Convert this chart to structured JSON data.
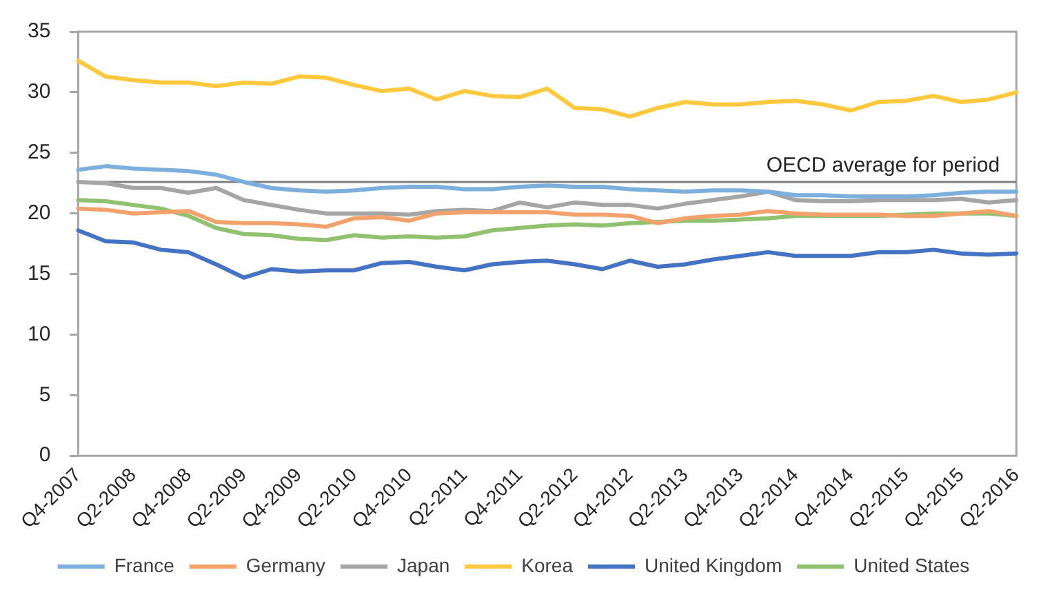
{
  "chart_data": {
    "type": "line",
    "categories": [
      "Q4-2007",
      null,
      "Q2-2008",
      null,
      "Q4-2008",
      null,
      "Q2-2009",
      null,
      "Q4-2009",
      null,
      "Q2-2010",
      null,
      "Q4-2010",
      null,
      "Q2-2011",
      null,
      "Q4-2011",
      null,
      "Q2-2012",
      null,
      "Q4-2012",
      null,
      "Q2-2013",
      null,
      "Q4-2013",
      null,
      "Q2-2014",
      null,
      "Q4-2014",
      null,
      "Q2-2015",
      null,
      "Q4-2015",
      null,
      "Q2-2016"
    ],
    "series": [
      {
        "name": "France",
        "color": "#7cafdd",
        "values": [
          23.6,
          23.9,
          23.7,
          23.6,
          23.5,
          23.2,
          22.6,
          22.1,
          21.9,
          21.8,
          21.9,
          22.1,
          22.2,
          22.2,
          22.0,
          22.0,
          22.2,
          22.3,
          22.2,
          22.2,
          22.0,
          21.9,
          21.8,
          21.9,
          21.9,
          21.8,
          21.5,
          21.5,
          21.4,
          21.4,
          21.4,
          21.5,
          21.7,
          21.8,
          21.8
        ]
      },
      {
        "name": "Germany",
        "color": "#f4a26b",
        "values": [
          20.4,
          20.3,
          20.0,
          20.1,
          20.2,
          19.3,
          19.2,
          19.2,
          19.1,
          18.9,
          19.6,
          19.7,
          19.4,
          20.0,
          20.1,
          20.1,
          20.1,
          20.1,
          19.9,
          19.9,
          19.8,
          19.2,
          19.6,
          19.8,
          19.9,
          20.2,
          20.0,
          19.9,
          19.9,
          19.9,
          19.8,
          19.8,
          20.0,
          20.2,
          19.8
        ]
      },
      {
        "name": "Japan",
        "color": "#a5a5a5",
        "values": [
          22.6,
          22.5,
          22.1,
          22.1,
          21.7,
          22.1,
          21.1,
          20.7,
          20.3,
          20.0,
          20.0,
          20.0,
          19.9,
          20.2,
          20.3,
          20.2,
          20.9,
          20.5,
          20.9,
          20.7,
          20.7,
          20.4,
          20.8,
          21.1,
          21.4,
          21.8,
          21.1,
          21.0,
          21.0,
          21.1,
          21.1,
          21.1,
          21.2,
          20.9,
          21.1
        ]
      },
      {
        "name": "Korea",
        "color": "#ffc83d",
        "values": [
          32.6,
          31.3,
          31.0,
          30.8,
          30.8,
          30.5,
          30.8,
          30.7,
          31.3,
          31.2,
          30.6,
          30.1,
          30.3,
          29.4,
          30.1,
          29.7,
          29.6,
          30.3,
          28.7,
          28.6,
          28.0,
          28.7,
          29.2,
          29.0,
          29.0,
          29.2,
          29.3,
          29.0,
          28.5,
          29.2,
          29.3,
          29.7,
          29.2,
          29.4,
          30.0
        ]
      },
      {
        "name": "United Kingdom",
        "color": "#4472c4",
        "values": [
          18.6,
          17.7,
          17.6,
          17.0,
          16.8,
          15.8,
          14.7,
          15.4,
          15.2,
          15.3,
          15.3,
          15.9,
          16.0,
          15.6,
          15.3,
          15.8,
          16.0,
          16.1,
          15.8,
          15.4,
          16.1,
          15.6,
          15.8,
          16.2,
          16.5,
          16.8,
          16.5,
          16.5,
          16.5,
          16.8,
          16.8,
          17.0,
          16.7,
          16.6,
          16.7
        ]
      },
      {
        "name": "United States",
        "color": "#8fc16e",
        "values": [
          21.1,
          21.0,
          20.7,
          20.4,
          19.8,
          18.8,
          18.3,
          18.2,
          17.9,
          17.8,
          18.2,
          18.0,
          18.1,
          18.0,
          18.1,
          18.6,
          18.8,
          19.0,
          19.1,
          19.0,
          19.2,
          19.3,
          19.4,
          19.4,
          19.5,
          19.6,
          19.8,
          19.8,
          19.8,
          19.8,
          19.9,
          20.0,
          20.0,
          20.0,
          19.8
        ]
      }
    ],
    "ylim": [
      0,
      35
    ],
    "yticks": [
      0,
      5,
      10,
      15,
      20,
      25,
      30,
      35
    ],
    "ref_lines": [
      {
        "axis": "y",
        "value": 22.6,
        "label": "OECD average for period",
        "color": "#7f7f7f"
      }
    ],
    "legend": "bottom"
  }
}
